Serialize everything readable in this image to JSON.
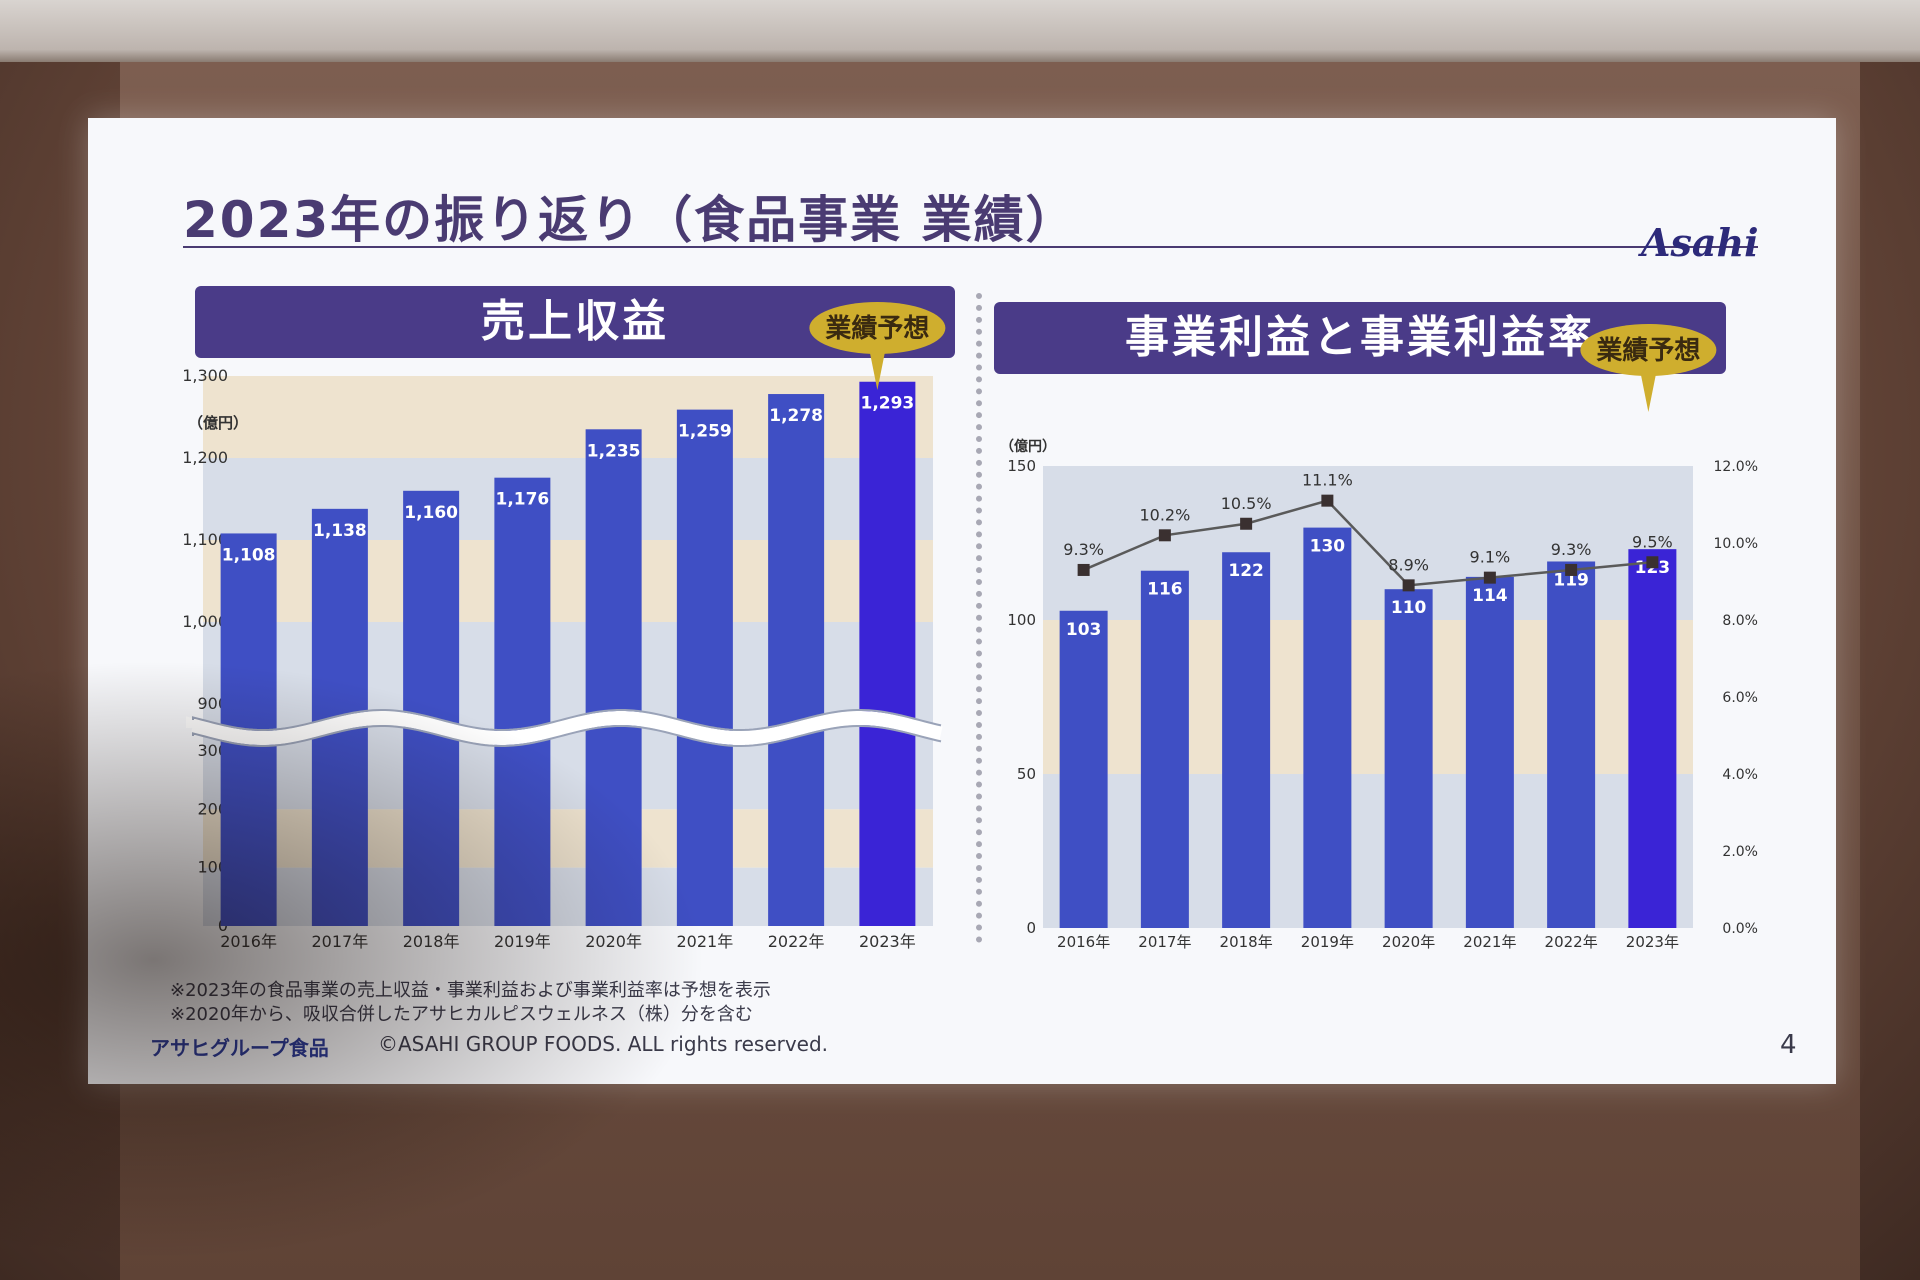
{
  "slide": {
    "title": "2023年の振り返り（食品事業 業績）",
    "logo": "Asahi",
    "page": "4",
    "brand": "アサヒグループ食品",
    "copyright": "©ASAHI GROUP FOODS. ALL rights reserved.",
    "notes": [
      "※2023年の食品事業の売上収益・事業利益および事業利益率は予想を表示",
      "※2020年から、吸収合併したアサヒカルピスウェルネス（株）分を含む"
    ]
  },
  "colors": {
    "title": "#4a3b72",
    "header_bar": "#4a3b88",
    "bar": "#3f4fc4",
    "bar_forecast": "#3a24d6",
    "line": "#5a5a5a",
    "marker": "#3a3030",
    "callout": "#cfae2e",
    "band_beige": "#eee3cf",
    "band_blue": "#d7dde8"
  },
  "chart_data": [
    {
      "type": "bar",
      "title": "売上収益",
      "unit_label": "（億円）",
      "categories": [
        "2016年",
        "2017年",
        "2018年",
        "2019年",
        "2020年",
        "2021年",
        "2022年",
        "2023年"
      ],
      "values": [
        1108,
        1138,
        1160,
        1176,
        1235,
        1259,
        1278,
        1293
      ],
      "value_labels": [
        "1,108",
        "1,138",
        "1,160",
        "1,176",
        "1,235",
        "1,259",
        "1,278",
        "1,293"
      ],
      "y_ticks": [
        "0",
        "100",
        "200",
        "300",
        "900",
        "1,000",
        "1,100",
        "1,200",
        "1,300"
      ],
      "axis_break": "between 300 and 900",
      "forecast_index": 7,
      "forecast_label": "業績予想"
    },
    {
      "type": "bar",
      "title": "事業利益と事業利益率",
      "unit_label": "（億円）",
      "categories": [
        "2016年",
        "2017年",
        "2018年",
        "2019年",
        "2020年",
        "2021年",
        "2022年",
        "2023年"
      ],
      "series": [
        {
          "name": "事業利益",
          "type": "bar",
          "values": [
            103,
            116,
            122,
            130,
            110,
            114,
            119,
            123
          ]
        },
        {
          "name": "事業利益率",
          "type": "line",
          "axis": "right",
          "values": [
            9.3,
            10.2,
            10.5,
            11.1,
            8.9,
            9.1,
            9.3,
            9.5
          ],
          "labels": [
            "9.3%",
            "10.2%",
            "10.5%",
            "11.1%",
            "8.9%",
            "9.1%",
            "9.3%",
            "9.5%"
          ]
        }
      ],
      "value_labels": [
        "103",
        "116",
        "122",
        "130",
        "110",
        "114",
        "119",
        "123"
      ],
      "ylim": [
        0,
        150
      ],
      "y_ticks": [
        "0",
        "50",
        "100",
        "150"
      ],
      "y2lim": [
        0,
        12
      ],
      "y2_ticks": [
        "0.0%",
        "2.0%",
        "4.0%",
        "6.0%",
        "8.0%",
        "10.0%",
        "12.0%"
      ],
      "forecast_index": 7,
      "forecast_label": "業績予想"
    }
  ]
}
